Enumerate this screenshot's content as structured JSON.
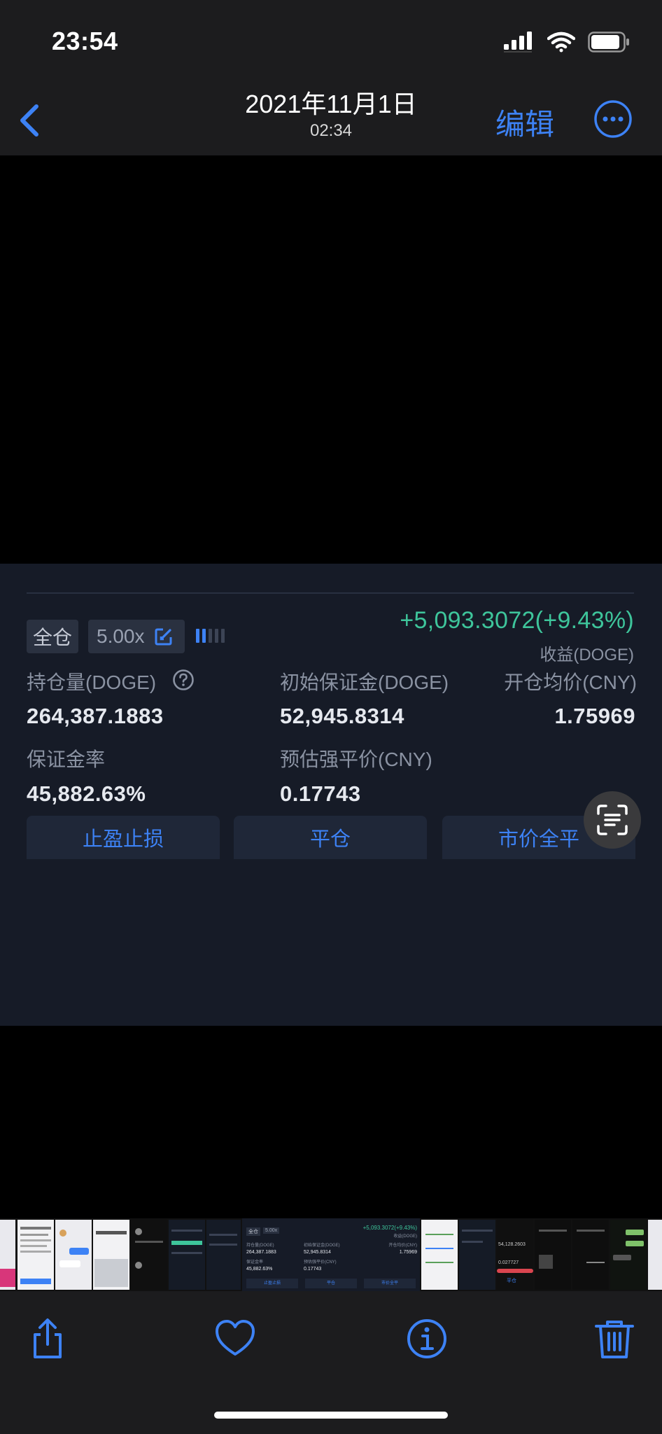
{
  "status_bar": {
    "time": "23:54"
  },
  "nav": {
    "date": "2021年11月1日",
    "time": "02:34",
    "edit_label": "编辑",
    "accent_color": "#3d82f5"
  },
  "position_card": {
    "margin_mode": "全仓",
    "leverage": "5.00x",
    "pnl": "+5,093.3072(+9.43%)",
    "pnl_label": "收益(DOGE)",
    "pnl_color": "#3ec59b",
    "fields": {
      "size_label": "持仓量(DOGE)",
      "size_value": "264,387.1883",
      "initial_margin_label": "初始保证金(DOGE)",
      "initial_margin_value": "52,945.8314",
      "entry_price_label": "开仓均价(CNY)",
      "entry_price_value": "1.75969",
      "margin_ratio_label": "保证金率",
      "margin_ratio_value": "45,882.63%",
      "liq_price_label": "预估强平价(CNY)",
      "liq_price_value": "0.17743"
    },
    "buttons": {
      "tp_sl": "止盈止损",
      "close": "平仓",
      "market_close_all": "市价全平"
    }
  },
  "thumbnail_strip": {
    "selected_preview": {
      "mode": "全仓",
      "leverage": "5.00x",
      "pnl": "+5,093.3072(+9.43%)",
      "pnl_label": "收益(DOGE)",
      "size_label": "持仓量(DOGE)",
      "margin_label": "初始保证金(DOGE)",
      "entry_label": "开仓均价(CNY)",
      "size_value": "264,387.1883",
      "margin_value": "52,945.8314",
      "entry_value": "1.75969",
      "ratio_label": "保证金率",
      "liq_label": "预估强平价(CNY)",
      "ratio_value": "45,882.63%",
      "liq_value": "0.17743",
      "btn1": "止盈止损",
      "btn2": "平仓",
      "btn3": "市价全平"
    },
    "right_preview": {
      "value1": "54,128.2603",
      "value2": "0.027727",
      "btn": "平仓"
    }
  },
  "toolbar": {
    "icons": [
      "share-icon",
      "heart-icon",
      "info-icon",
      "trash-icon"
    ]
  }
}
